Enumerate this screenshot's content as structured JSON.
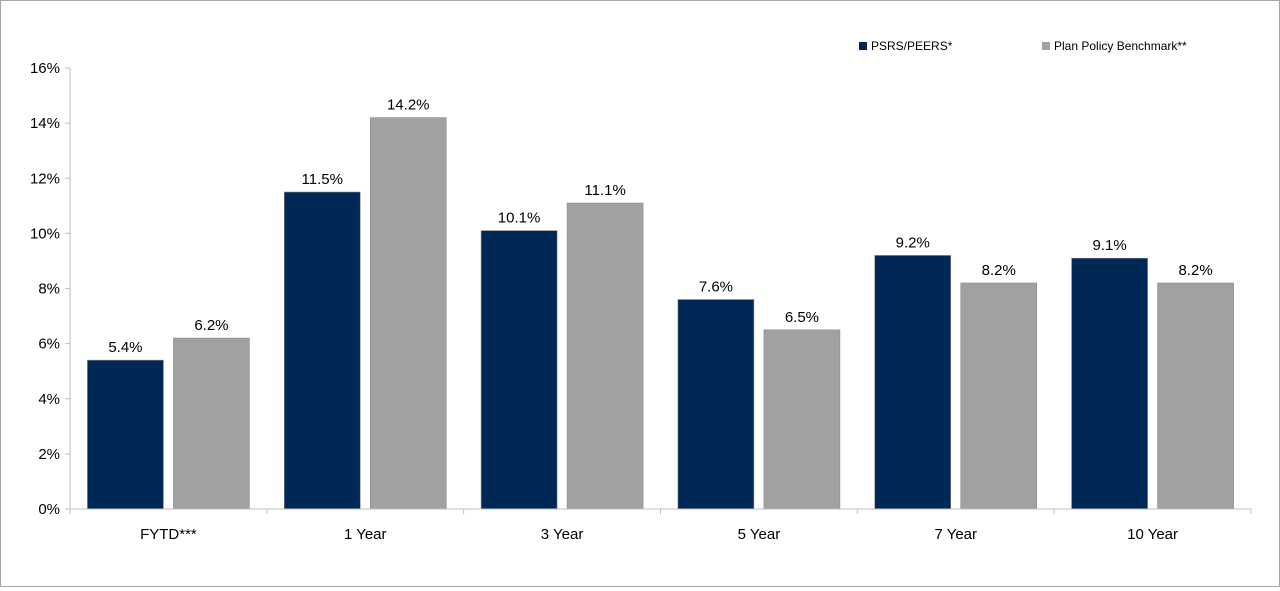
{
  "chart_data": {
    "type": "bar",
    "categories": [
      "FYTD***",
      "1 Year",
      "3 Year",
      "5 Year",
      "7 Year",
      "10 Year"
    ],
    "series": [
      {
        "name": "PSRS/PEERS*",
        "values": [
          5.4,
          11.5,
          10.1,
          7.6,
          9.2,
          9.1
        ],
        "color": "#002856"
      },
      {
        "name": "Plan Policy Benchmark**",
        "values": [
          6.2,
          14.2,
          11.1,
          6.5,
          8.2,
          8.2
        ],
        "color": "#a0a1a3"
      }
    ],
    "data_labels": [
      [
        "5.4%",
        "11.5%",
        "10.1%",
        "7.6%",
        "9.2%",
        "9.1%"
      ],
      [
        "6.2%",
        "14.2%",
        "11.1%",
        "6.5%",
        "8.2%",
        "8.2%"
      ]
    ],
    "y_ticks": [
      0,
      2,
      4,
      6,
      8,
      10,
      12,
      14,
      16
    ],
    "y_tick_labels": [
      "0%",
      "2%",
      "4%",
      "6%",
      "8%",
      "10%",
      "12%",
      "14%",
      "16%"
    ],
    "ylim": [
      0,
      16
    ],
    "legend_position": "top-right",
    "grid": false
  }
}
